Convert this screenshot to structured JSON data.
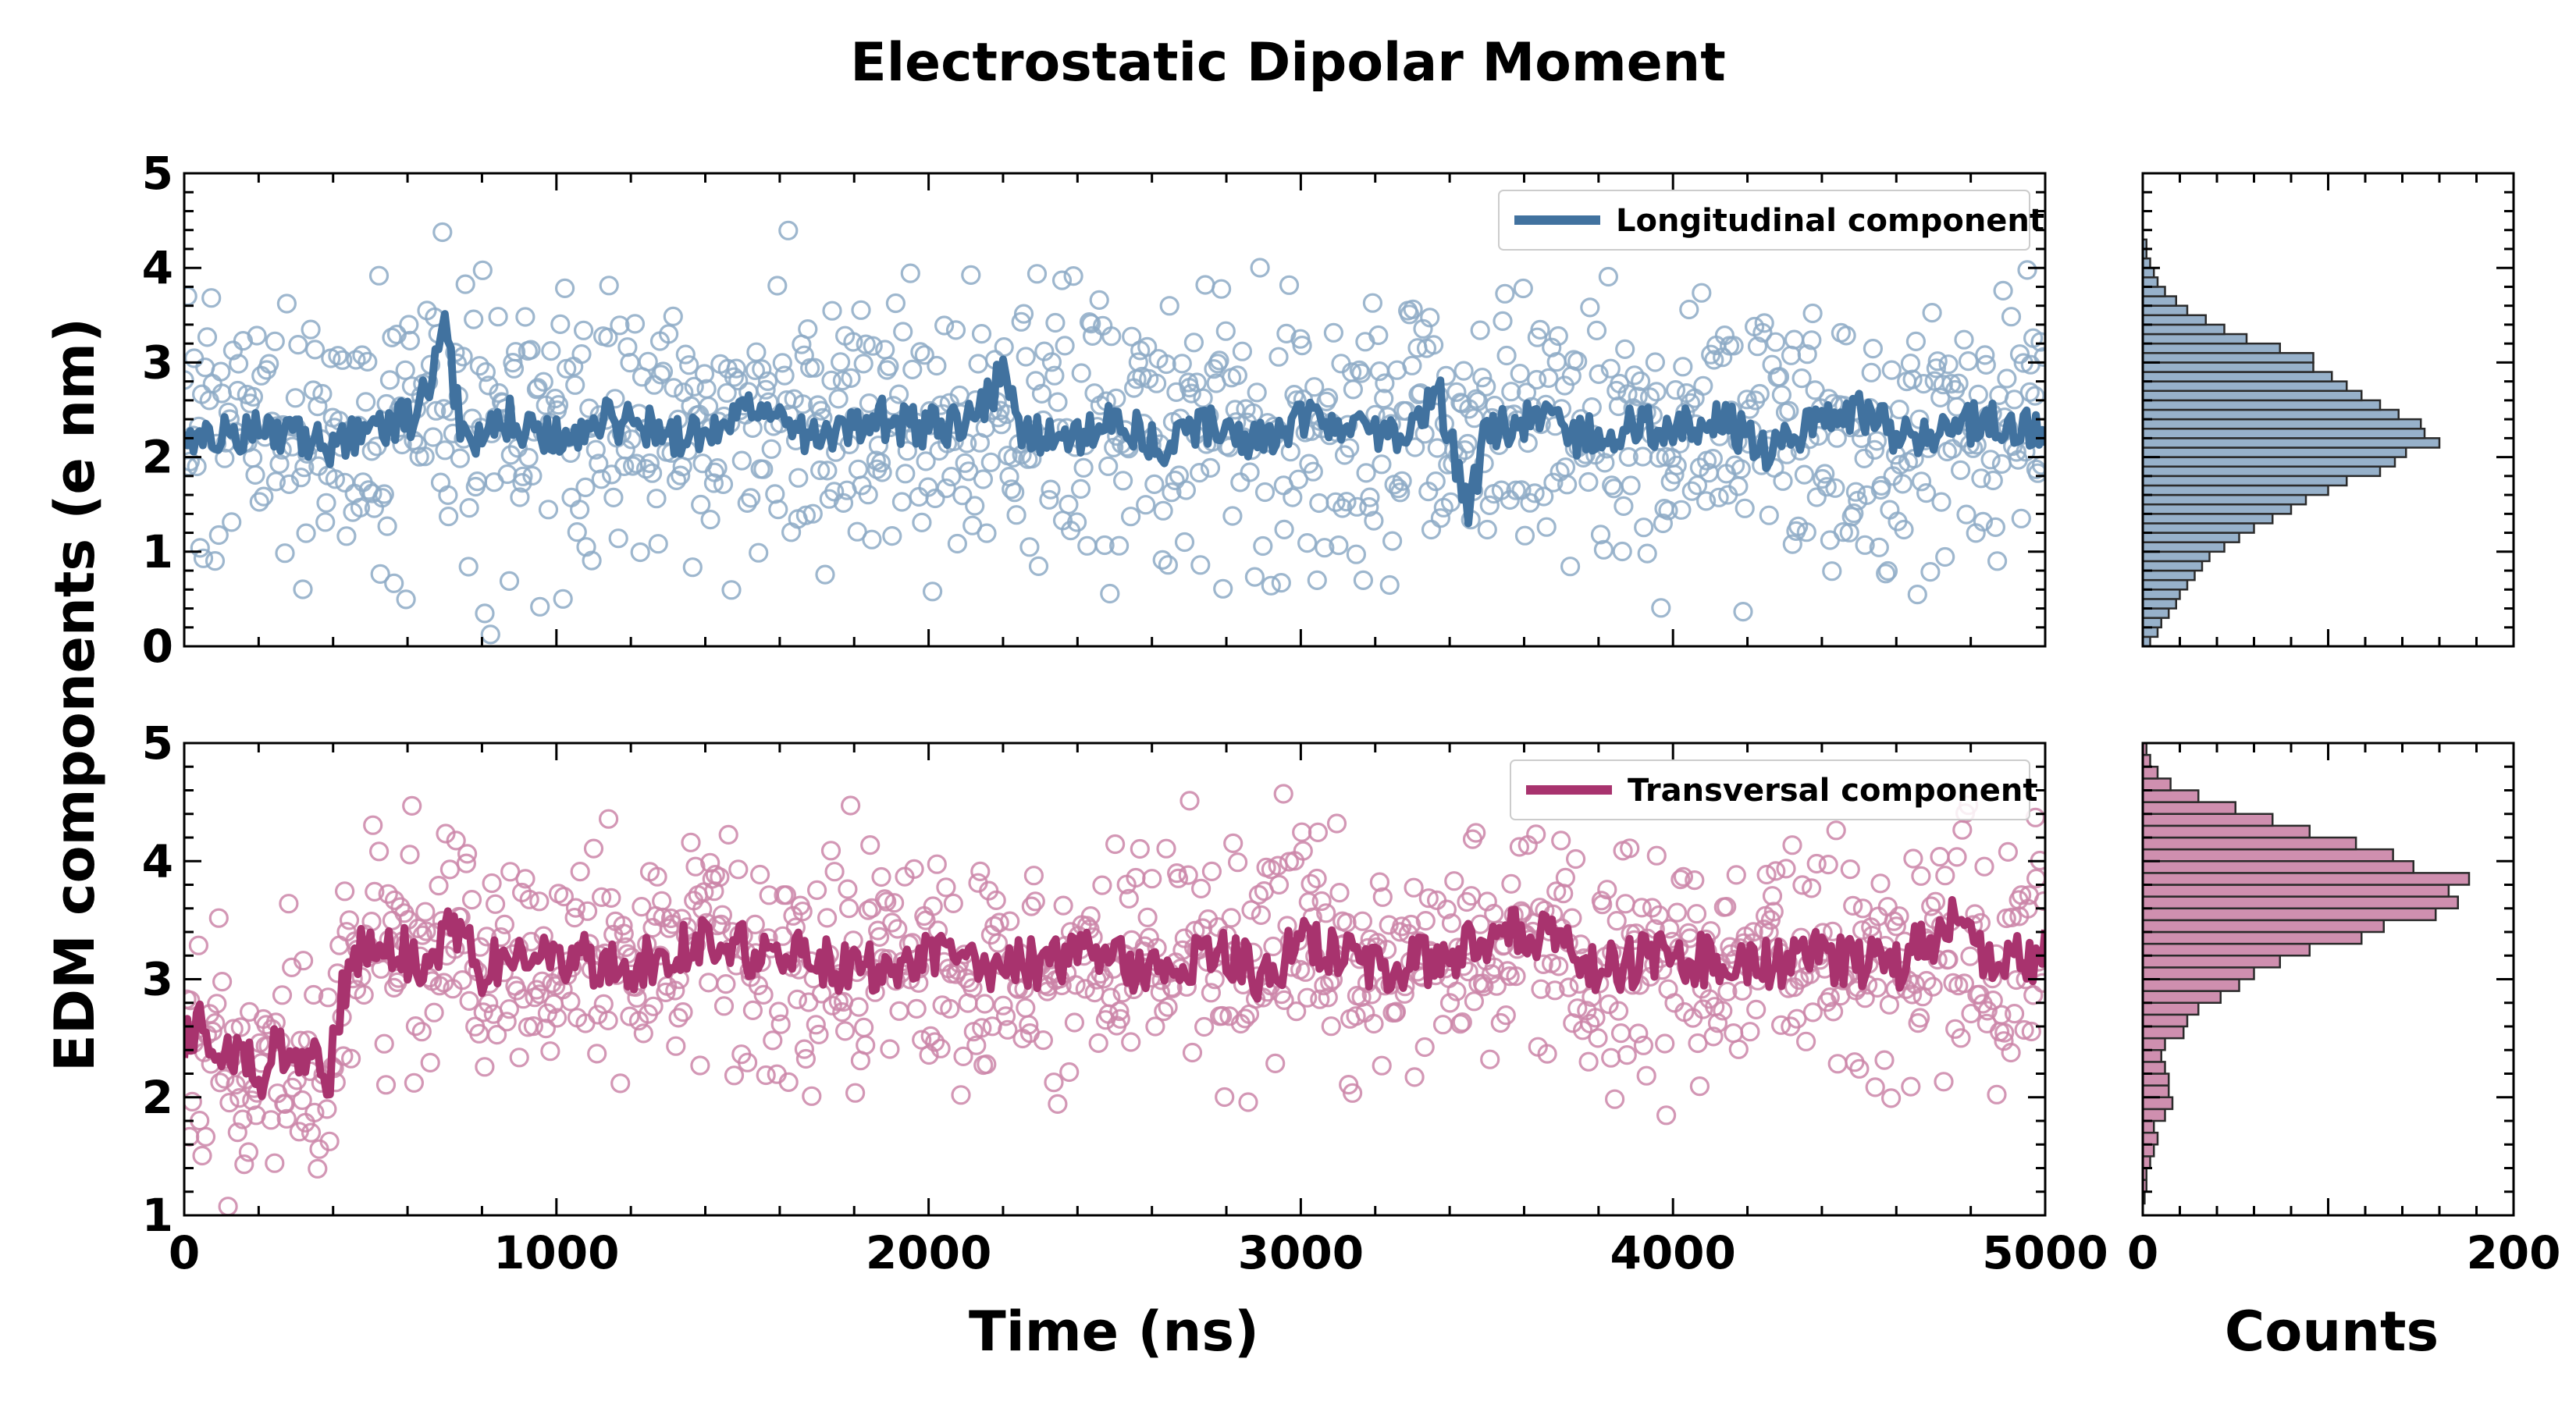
{
  "chart_data": {
    "type": "scatter",
    "title": "Electrostatic Dipolar Moment",
    "ylabel": "EDM components (e nm)",
    "xlabel": "Time (ns)",
    "hist_xlabel": "Counts",
    "xlim": [
      0,
      5000
    ],
    "x_ticks": [
      "0",
      "1000",
      "2000",
      "3000",
      "4000",
      "5000"
    ],
    "hist_xlim": [
      0,
      200
    ],
    "hist_x_ticks": [
      "0",
      "200"
    ],
    "panels": [
      {
        "name": "longitudinal",
        "legend": "Longitudinal component",
        "color": "#41729f",
        "ylim": [
          0,
          5
        ],
        "y_ticks": [
          "0",
          "1",
          "2",
          "3",
          "4",
          "5"
        ],
        "scatter_mean": 2.3,
        "scatter_sd": 0.75,
        "scatter_count": 1000,
        "running_mean": {
          "x": [
            0,
            125,
            250,
            375,
            500,
            625,
            700,
            750,
            875,
            1000,
            1125,
            1250,
            1375,
            1500,
            1625,
            1750,
            1875,
            2000,
            2125,
            2200,
            2250,
            2375,
            2500,
            2625,
            2750,
            2875,
            3000,
            3125,
            3250,
            3375,
            3450,
            3500,
            3625,
            3750,
            3875,
            4000,
            4125,
            4250,
            4375,
            4500,
            4625,
            4750,
            4875,
            5000
          ],
          "y": [
            2.3,
            2.2,
            2.3,
            2.1,
            2.3,
            2.4,
            3.3,
            2.2,
            2.4,
            2.2,
            2.4,
            2.3,
            2.2,
            2.5,
            2.3,
            2.2,
            2.4,
            2.3,
            2.4,
            2.9,
            2.3,
            2.2,
            2.4,
            2.1,
            2.3,
            2.2,
            2.4,
            2.3,
            2.2,
            2.6,
            1.4,
            2.3,
            2.4,
            2.2,
            2.3,
            2.3,
            2.4,
            2.1,
            2.3,
            2.5,
            2.2,
            2.3,
            2.4,
            2.2
          ]
        },
        "histogram": {
          "bin_start": 0.0,
          "bin_width": 0.1,
          "counts": [
            4,
            8,
            10,
            14,
            18,
            20,
            24,
            28,
            32,
            36,
            44,
            52,
            60,
            70,
            80,
            88,
            100,
            110,
            128,
            136,
            142,
            160,
            152,
            150,
            138,
            128,
            118,
            110,
            102,
            92,
            92,
            74,
            56,
            44,
            34,
            24,
            18,
            12,
            8,
            6,
            4,
            2,
            2,
            0,
            0,
            0,
            0,
            0,
            0,
            0
          ]
        }
      },
      {
        "name": "transversal",
        "legend": "Transversal component",
        "color": "#a8336e",
        "ylim": [
          1,
          5
        ],
        "y_ticks": [
          "1",
          "2",
          "3",
          "4",
          "5"
        ],
        "scatter_mean": 3.1,
        "scatter_sd": 0.5,
        "scatter_count": 1000,
        "running_mean": {
          "x": [
            0,
            50,
            100,
            150,
            200,
            250,
            300,
            350,
            380,
            420,
            460,
            550,
            650,
            720,
            800,
            1000,
            1200,
            1400,
            1600,
            1800,
            2000,
            2200,
            2400,
            2600,
            2800,
            2900,
            3000,
            3200,
            3400,
            3600,
            3800,
            4000,
            4200,
            4400,
            4600,
            4780,
            4850,
            5000
          ],
          "y": [
            2.5,
            2.6,
            2.3,
            2.4,
            2.2,
            2.4,
            2.4,
            2.3,
            1.95,
            2.8,
            3.2,
            3.3,
            3.1,
            3.5,
            3.1,
            3.2,
            3.1,
            3.3,
            3.2,
            3.1,
            3.2,
            3.1,
            3.2,
            3.1,
            3.2,
            3.0,
            3.3,
            3.1,
            3.2,
            3.4,
            3.1,
            3.2,
            3.1,
            3.2,
            3.1,
            3.6,
            3.1,
            3.2
          ]
        },
        "histogram": {
          "bin_start": 1.0,
          "bin_width": 0.1,
          "counts": [
            0,
            1,
            2,
            2,
            4,
            6,
            8,
            6,
            12,
            16,
            14,
            14,
            12,
            10,
            12,
            22,
            24,
            30,
            42,
            52,
            60,
            74,
            90,
            118,
            130,
            158,
            170,
            165,
            176,
            146,
            135,
            115,
            90,
            70,
            50,
            30,
            15,
            8,
            4,
            2
          ]
        }
      }
    ]
  }
}
